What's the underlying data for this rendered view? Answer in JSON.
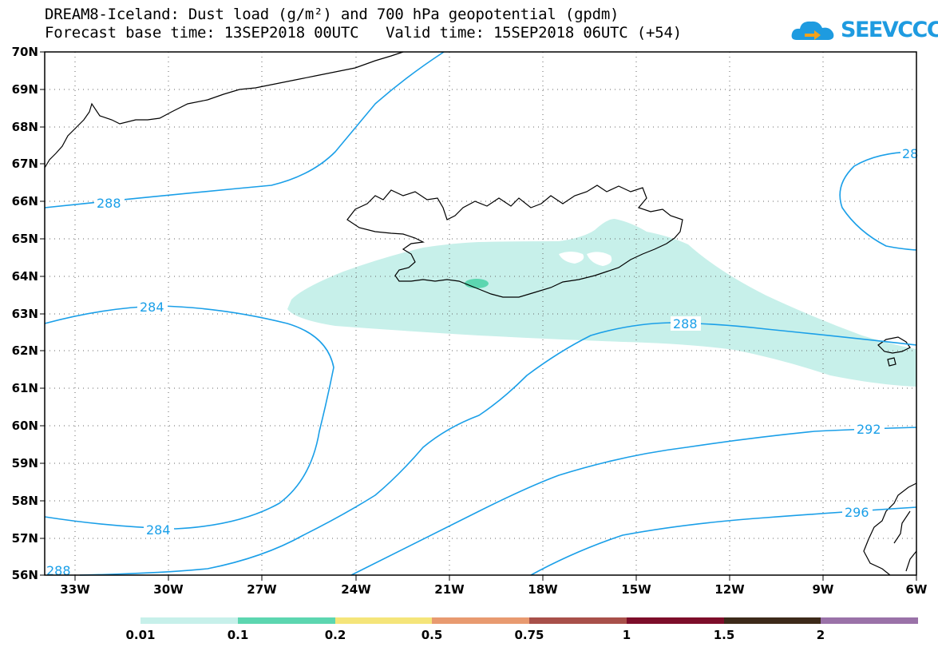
{
  "title": {
    "line1": "DREAM8-Iceland: Dust load (g/m²) and 700 hPa geopotential (gpdm)",
    "line2": "Forecast base time: 13SEP2018 00UTC   Valid time: 15SEP2018 06UTC (+54)"
  },
  "logo": {
    "text": "SEEVCCC",
    "icon": "cloud-arrow-icon",
    "color": "#1e9be0"
  },
  "map": {
    "lat_labels": [
      "70N",
      "69N",
      "68N",
      "67N",
      "66N",
      "65N",
      "64N",
      "63N",
      "62N",
      "61N",
      "60N",
      "59N",
      "58N",
      "57N",
      "56N"
    ],
    "lon_labels": [
      "33W",
      "30W",
      "27W",
      "24W",
      "21W",
      "18W",
      "15W",
      "12W",
      "9W",
      "6W"
    ],
    "contour_color": "#1a9fe8",
    "contour_labels": [
      "288",
      "284",
      "284",
      "288",
      "288",
      "292",
      "296",
      "28"
    ],
    "dust_colors": {
      "low": "#c7f0ea",
      "mid": "#5cd6b0"
    }
  },
  "colorbar": {
    "colors": [
      "#c7f0ea",
      "#5cd6b0",
      "#f5e57a",
      "#e89a70",
      "#a8504a",
      "#7d0d2a",
      "#3d2a1a",
      "#9a72a8"
    ],
    "labels": [
      "0.01",
      "0.1",
      "0.2",
      "0.5",
      "0.75",
      "1",
      "1.5",
      "2"
    ]
  }
}
